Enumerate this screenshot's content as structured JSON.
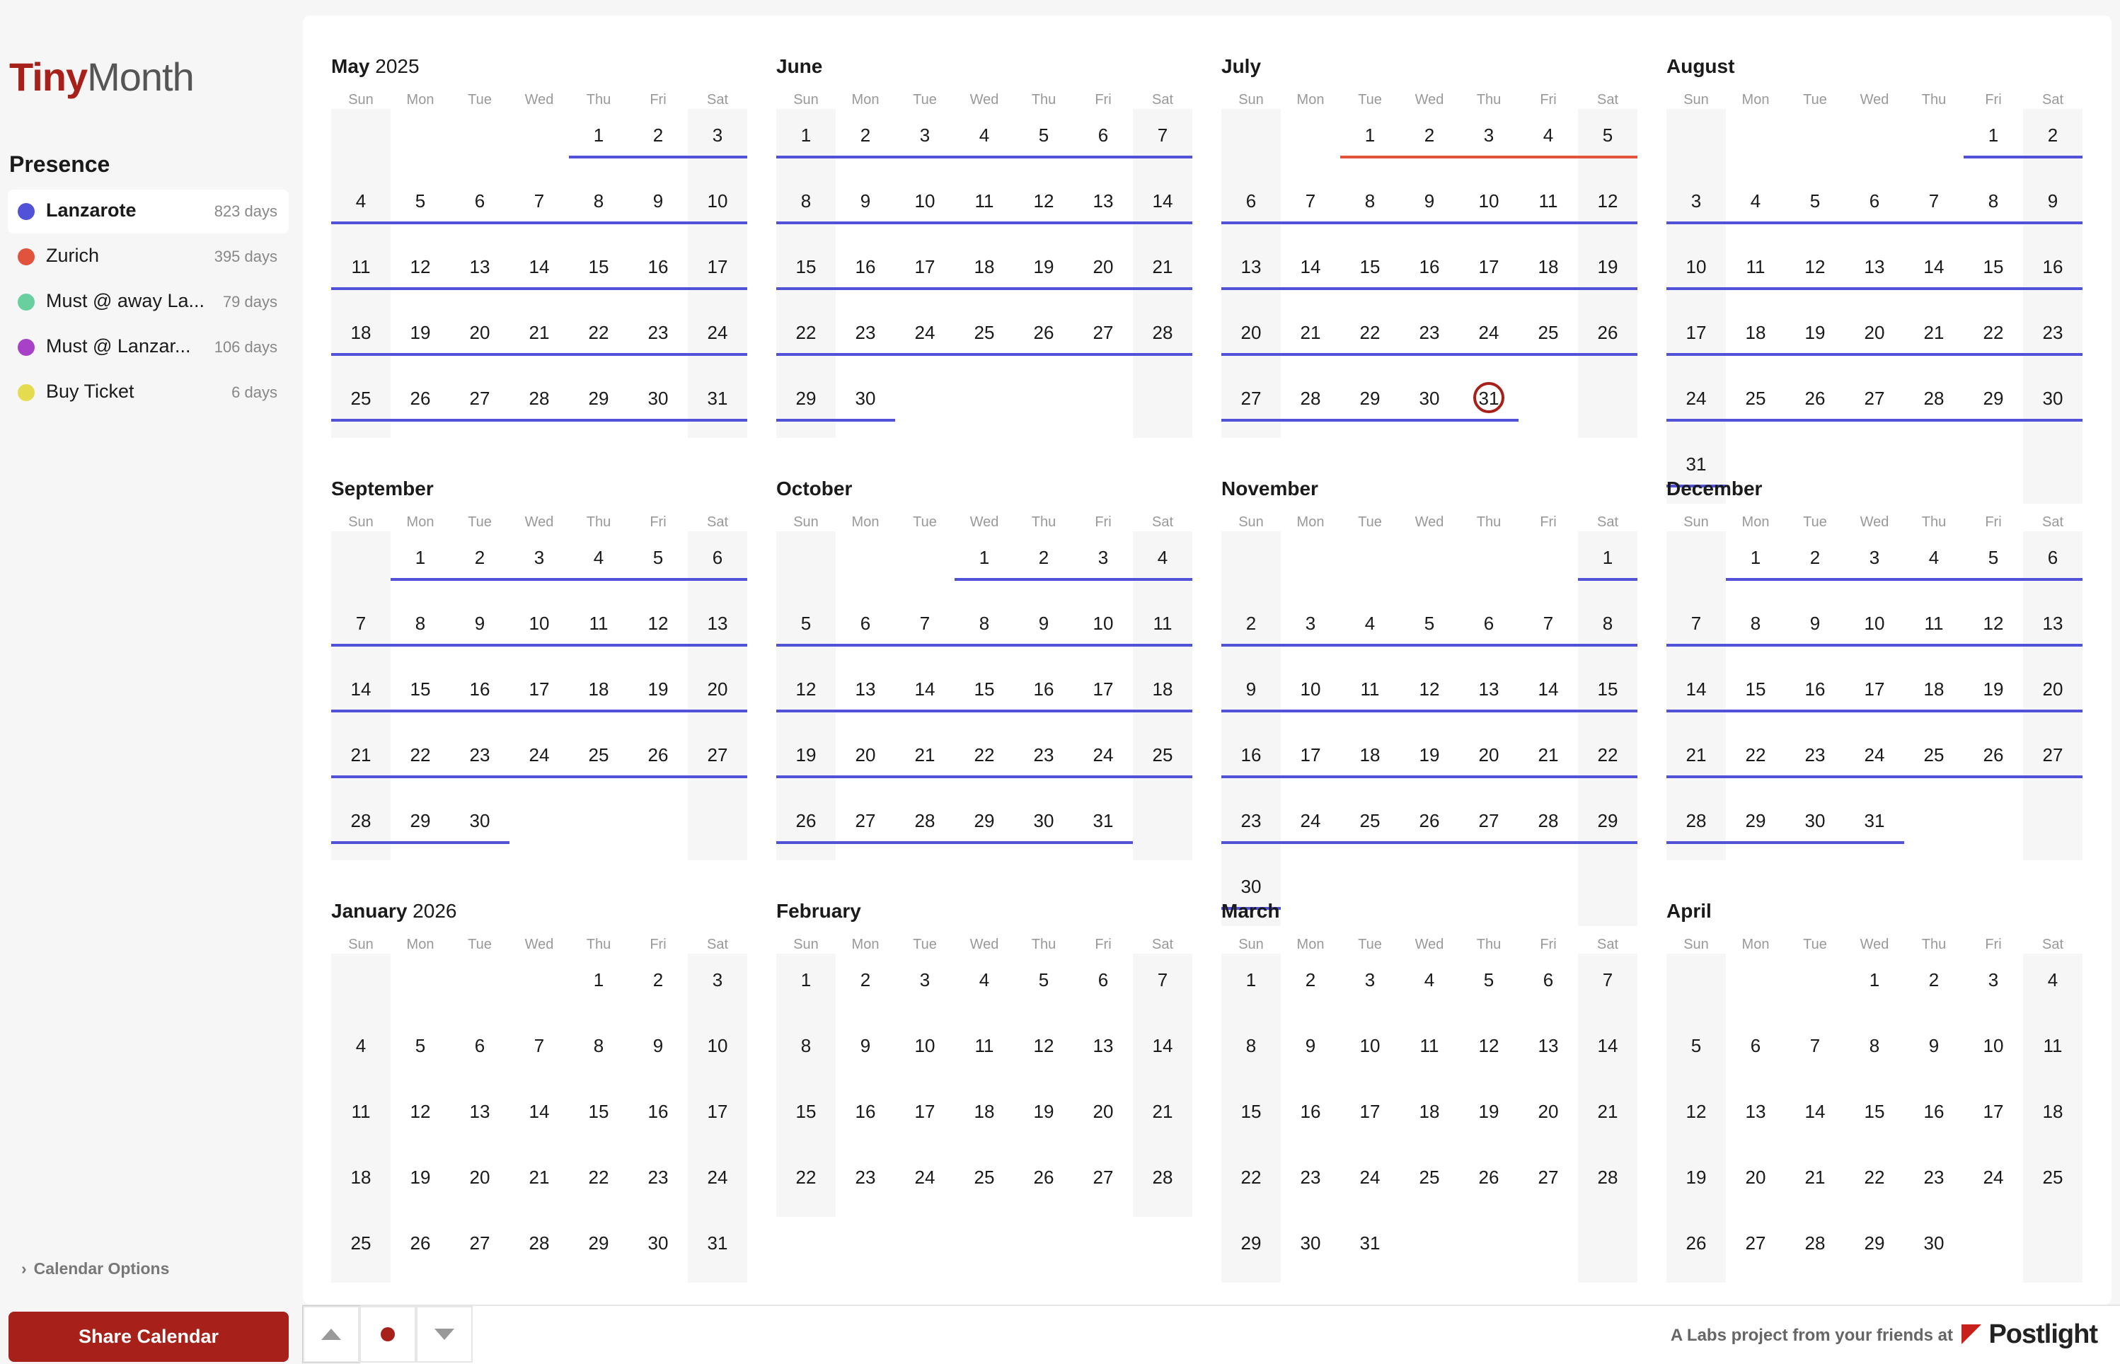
{
  "app": {
    "brand_a": "Tiny",
    "brand_b": "Month"
  },
  "sidebar": {
    "presence_title": "Presence",
    "calendars": [
      {
        "name": "Lanzarote",
        "days": "823 days",
        "color": "#5252d9",
        "active": true
      },
      {
        "name": "Zurich",
        "days": "395 days",
        "color": "#e2533d",
        "active": false
      },
      {
        "name": "Must @ away La...",
        "days": "79 days",
        "color": "#6acf9e",
        "active": false
      },
      {
        "name": "Must @ Lanzar...",
        "days": "106 days",
        "color": "#a940c8",
        "active": false
      },
      {
        "name": "Buy Ticket",
        "days": "6 days",
        "color": "#e4dc4e",
        "active": false
      }
    ],
    "options_label": "Calendar Options",
    "share_label": "Share Calendar"
  },
  "weekdays": [
    "Sun",
    "Mon",
    "Tue",
    "Wed",
    "Thu",
    "Fri",
    "Sat"
  ],
  "months": [
    {
      "name": "May",
      "year": "2025",
      "offset": 4,
      "days": 31
    },
    {
      "name": "June",
      "year": "",
      "offset": 0,
      "days": 30
    },
    {
      "name": "July",
      "year": "",
      "offset": 2,
      "days": 31,
      "today": 31
    },
    {
      "name": "August",
      "year": "",
      "offset": 5,
      "days": 31
    },
    {
      "name": "September",
      "year": "",
      "offset": 1,
      "days": 30
    },
    {
      "name": "October",
      "year": "",
      "offset": 3,
      "days": 31
    },
    {
      "name": "November",
      "year": "",
      "offset": 6,
      "days": 30
    },
    {
      "name": "December",
      "year": "",
      "offset": 1,
      "days": 31
    },
    {
      "name": "January",
      "year": "2026",
      "offset": 4,
      "days": 31
    },
    {
      "name": "February",
      "year": "",
      "offset": 0,
      "days": 28
    },
    {
      "name": "March",
      "year": "",
      "offset": 0,
      "days": 31
    },
    {
      "name": "April",
      "year": "",
      "offset": 3,
      "days": 30
    }
  ],
  "footer": {
    "credit": "A Labs project from your friends at",
    "brand": "Postlight"
  }
}
